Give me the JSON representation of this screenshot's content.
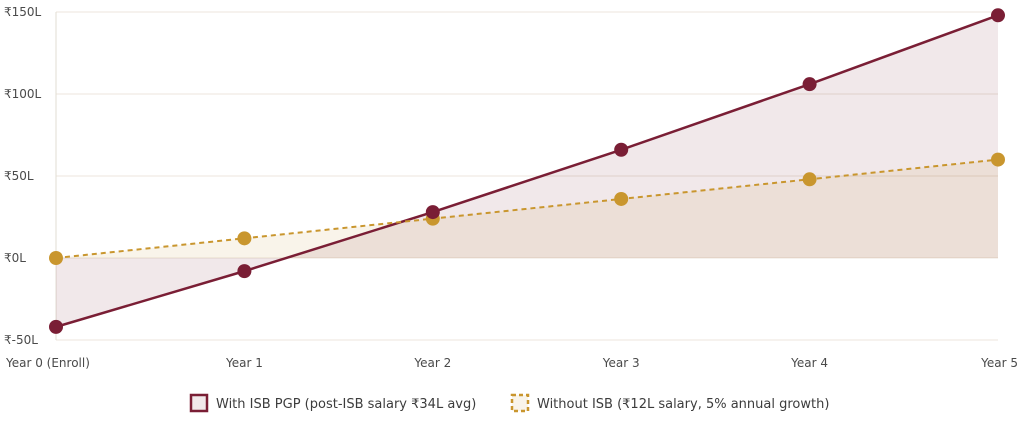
{
  "chart_data": {
    "type": "line",
    "categories": [
      "Year 0 (Enroll)",
      "Year 1",
      "Year 2",
      "Year 3",
      "Year 4",
      "Year 5"
    ],
    "y_ticks": [
      "₹-50L",
      "₹0L",
      "₹50L",
      "₹100L",
      "₹150L"
    ],
    "ylim": [
      -50,
      150
    ],
    "grid": true,
    "legend_position": "bottom",
    "series": [
      {
        "name": "With ISB PGP (post-ISB salary ₹34L avg)",
        "values": [
          -42,
          -8,
          28,
          66,
          106,
          148
        ],
        "color": "#7a1e35",
        "fill": "rgba(122,30,53,0.10)",
        "style": "solid"
      },
      {
        "name": "Without ISB (₹12L salary, 5% annual growth)",
        "values": [
          0,
          12,
          24,
          36,
          48,
          60
        ],
        "color": "#c9962e",
        "fill": "rgba(201,150,46,0.10)",
        "style": "dashed"
      }
    ]
  }
}
